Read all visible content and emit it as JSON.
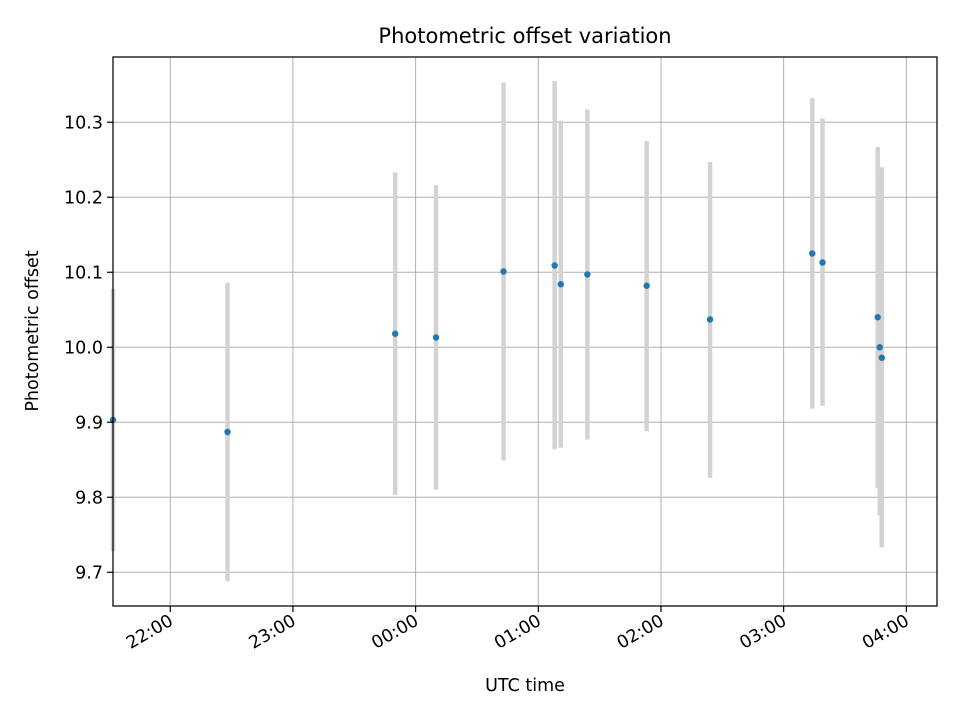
{
  "chart_data": {
    "type": "scatter",
    "title": "Photometric offset variation",
    "xlabel": "UTC time",
    "ylabel": "Photometric offset",
    "x_axis_type": "time",
    "x_range": [
      "21:32",
      "04:15"
    ],
    "x_ticks": [
      "22:00",
      "23:00",
      "00:00",
      "01:00",
      "02:00",
      "03:00",
      "04:00"
    ],
    "ylim": [
      9.655,
      10.387
    ],
    "y_ticks": [
      9.7,
      9.8,
      9.9,
      10.0,
      10.1,
      10.2,
      10.3
    ],
    "y_tick_labels": [
      "9.7",
      "9.8",
      "9.9",
      "10.0",
      "10.1",
      "10.2",
      "10.3"
    ],
    "grid": true,
    "marker_color": "#1f77b4",
    "errorbar_color": "#d3d3d3",
    "series": [
      {
        "points": [
          {
            "time": "21:32",
            "y": 9.903,
            "err_low": 9.728,
            "err_high": 10.078
          },
          {
            "time": "22:28",
            "y": 9.887,
            "err_low": 9.688,
            "err_high": 10.086
          },
          {
            "time": "23:50",
            "y": 10.018,
            "err_low": 9.803,
            "err_high": 10.233
          },
          {
            "time": "00:10",
            "y": 10.013,
            "err_low": 9.81,
            "err_high": 10.216
          },
          {
            "time": "00:43",
            "y": 10.101,
            "err_low": 9.849,
            "err_high": 10.353
          },
          {
            "time": "01:08",
            "y": 10.109,
            "err_low": 9.864,
            "err_high": 10.355
          },
          {
            "time": "01:11",
            "y": 10.084,
            "err_low": 9.866,
            "err_high": 10.302
          },
          {
            "time": "01:24",
            "y": 10.097,
            "err_low": 9.877,
            "err_high": 10.317
          },
          {
            "time": "01:53",
            "y": 10.082,
            "err_low": 9.888,
            "err_high": 10.275
          },
          {
            "time": "02:24",
            "y": 10.037,
            "err_low": 9.826,
            "err_high": 10.247
          },
          {
            "time": "03:14",
            "y": 10.125,
            "err_low": 9.918,
            "err_high": 10.332
          },
          {
            "time": "03:19",
            "y": 10.113,
            "err_low": 9.922,
            "err_high": 10.305
          },
          {
            "time": "03:46",
            "y": 10.04,
            "err_low": 9.812,
            "err_high": 10.267
          },
          {
            "time": "03:47",
            "y": 10.0,
            "err_low": 9.776,
            "err_high": 10.228
          },
          {
            "time": "03:48",
            "y": 9.986,
            "err_low": 9.733,
            "err_high": 10.24
          }
        ]
      }
    ]
  }
}
